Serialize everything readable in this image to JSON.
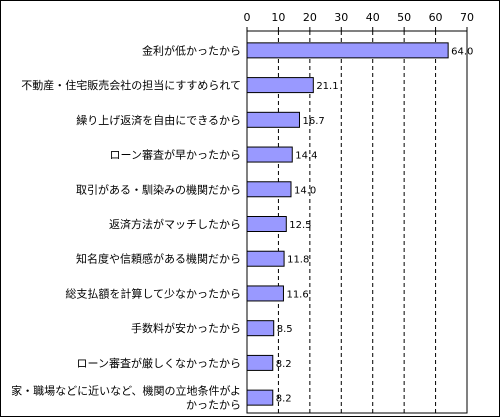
{
  "chart_data": {
    "type": "bar",
    "orientation": "horizontal",
    "categories": [
      "金利が低かったから",
      "不動産・住宅販売会社の担当にすすめられて",
      "繰り上げ返済を自由にできるから",
      "ローン審査が早かったから",
      "取引がある・馴染みの機関だから",
      "返済方法がマッチしたから",
      "知名度や信頼感がある機関だから",
      "総支払額を計算して少なかったから",
      "手数料が安かったから",
      "ローン審査が厳しくなかったから",
      [
        "家・職場などに近いなど、機関の立地条件がよ",
        "かったから"
      ]
    ],
    "values": [
      64.0,
      21.1,
      16.7,
      14.4,
      14.0,
      12.5,
      11.8,
      11.6,
      8.5,
      8.2,
      8.2
    ],
    "value_labels": [
      "64.0",
      "21.1",
      "16.7",
      "14.4",
      "14.0",
      "12.5",
      "11.8",
      "11.6",
      "8.5",
      "8.2",
      "8.2"
    ],
    "x_ticks": [
      "0",
      "10",
      "20",
      "30",
      "40",
      "50",
      "60",
      "70"
    ],
    "xlim": [
      0,
      70
    ],
    "grid": "vertical-dashed",
    "legend": "none",
    "bar_color": "#9999ff",
    "bar_border": "#000000"
  }
}
